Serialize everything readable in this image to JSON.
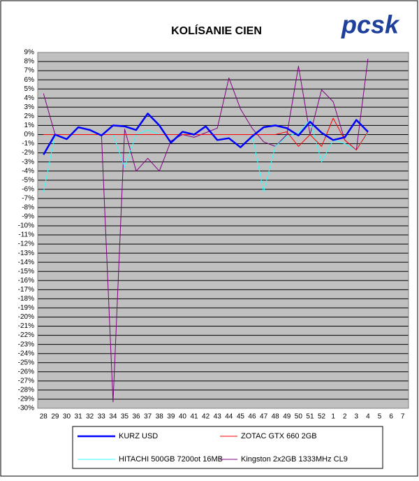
{
  "logo": "pcsk",
  "chart_data": {
    "type": "line",
    "title": "KOLÍSANIE CIEN",
    "categories": [
      "28",
      "29",
      "30",
      "31",
      "32",
      "33",
      "34",
      "35",
      "36",
      "37",
      "38",
      "39",
      "40",
      "41",
      "42",
      "43",
      "44",
      "45",
      "46",
      "47",
      "48",
      "49",
      "50",
      "51",
      "52",
      "1",
      "2",
      "3",
      "4",
      "5",
      "6",
      "7"
    ],
    "ylim": [
      -30,
      9
    ],
    "yticks": [
      {
        "value": 9,
        "label": "9%"
      },
      {
        "value": 8,
        "label": "8%"
      },
      {
        "value": 7,
        "label": "7%"
      },
      {
        "value": 6,
        "label": "6%"
      },
      {
        "value": 5,
        "label": "5%"
      },
      {
        "value": 4,
        "label": "4%"
      },
      {
        "value": 3,
        "label": "3%"
      },
      {
        "value": 2,
        "label": "2%"
      },
      {
        "value": 1,
        "label": "1%"
      },
      {
        "value": 0,
        "label": "0%"
      },
      {
        "value": -1,
        "label": "-1%"
      },
      {
        "value": -2,
        "label": "-2%"
      },
      {
        "value": -3,
        "label": "-3%"
      },
      {
        "value": -4,
        "label": "-4%"
      },
      {
        "value": -5,
        "label": "-5%"
      },
      {
        "value": -6,
        "label": "-6%"
      },
      {
        "value": -7,
        "label": "-7%"
      },
      {
        "value": -8,
        "label": "-8%"
      },
      {
        "value": -9,
        "label": "-9%"
      },
      {
        "value": -10,
        "label": "-10%"
      },
      {
        "value": -11,
        "label": "-11%"
      },
      {
        "value": -12,
        "label": "-12%"
      },
      {
        "value": -13,
        "label": "-13%"
      },
      {
        "value": -14,
        "label": "-14%"
      },
      {
        "value": -15,
        "label": "-15%"
      },
      {
        "value": -16,
        "label": "-16%"
      },
      {
        "value": -17,
        "label": "-17%"
      },
      {
        "value": -18,
        "label": "-18%"
      },
      {
        "value": -19,
        "label": "-19%"
      },
      {
        "value": -20,
        "label": "-20%"
      },
      {
        "value": -21,
        "label": "-21%"
      },
      {
        "value": -22,
        "label": "-22%"
      },
      {
        "value": -23,
        "label": "-23%"
      },
      {
        "value": -24,
        "label": "-24%"
      },
      {
        "value": -25,
        "label": "-25%"
      },
      {
        "value": -26,
        "label": "-26%"
      },
      {
        "value": -27,
        "label": "-27%"
      },
      {
        "value": -28,
        "label": "-28%"
      },
      {
        "value": -29,
        "label": "-29%"
      },
      {
        "value": -30,
        "label": "-30%"
      }
    ],
    "grid": true,
    "series": [
      {
        "name": "KURZ USD",
        "color": "#0000ff",
        "values": [
          -2.2,
          0,
          -0.5,
          0.8,
          0.5,
          -0.1,
          1.0,
          0.9,
          0.5,
          2.3,
          1.0,
          -0.9,
          0.3,
          0,
          0.9,
          -0.6,
          -0.4,
          -1.4,
          -0.2,
          0.8,
          1.0,
          0.7,
          -0.1,
          1.4,
          0.2,
          -0.6,
          -0.3,
          1.6,
          0.3,
          null,
          null,
          null
        ]
      },
      {
        "name": "ZOTAC GTX 660 2GB",
        "color": "#ff0000",
        "values": [
          0,
          0,
          0,
          0,
          0,
          0,
          0,
          0,
          0,
          0,
          0,
          0,
          0,
          0,
          0,
          0,
          0,
          0,
          0,
          0,
          0,
          0.3,
          -1.3,
          0,
          -1.3,
          1.8,
          -0.6,
          -1.7,
          0.3,
          null,
          null,
          null
        ]
      },
      {
        "name": "HITACHI 500GB 7200ot 16MB",
        "color": "#33ffff",
        "values": [
          -6.3,
          0,
          0,
          0,
          0,
          0,
          0,
          -3.6,
          0,
          0.5,
          0,
          0,
          0,
          0,
          0,
          0,
          0,
          0,
          0,
          -6.3,
          -1.3,
          -0.2,
          0.2,
          1.6,
          -3.0,
          -0.6,
          -1.0,
          -1.7,
          0.2,
          null,
          null,
          null
        ]
      },
      {
        "name": "Kingston 2x2GB 1333MHz CL9",
        "color": "#800080",
        "values": [
          4.5,
          0,
          0,
          0,
          0,
          0,
          -29.3,
          0.6,
          -4.0,
          -2.6,
          -4.0,
          -0.7,
          0,
          -0.3,
          0.2,
          0.7,
          6.2,
          2.8,
          0.7,
          -0.8,
          -1.3,
          0,
          7.5,
          0,
          4.9,
          3.6,
          -0.6,
          -1.7,
          8.3,
          null,
          null,
          null
        ]
      }
    ]
  }
}
